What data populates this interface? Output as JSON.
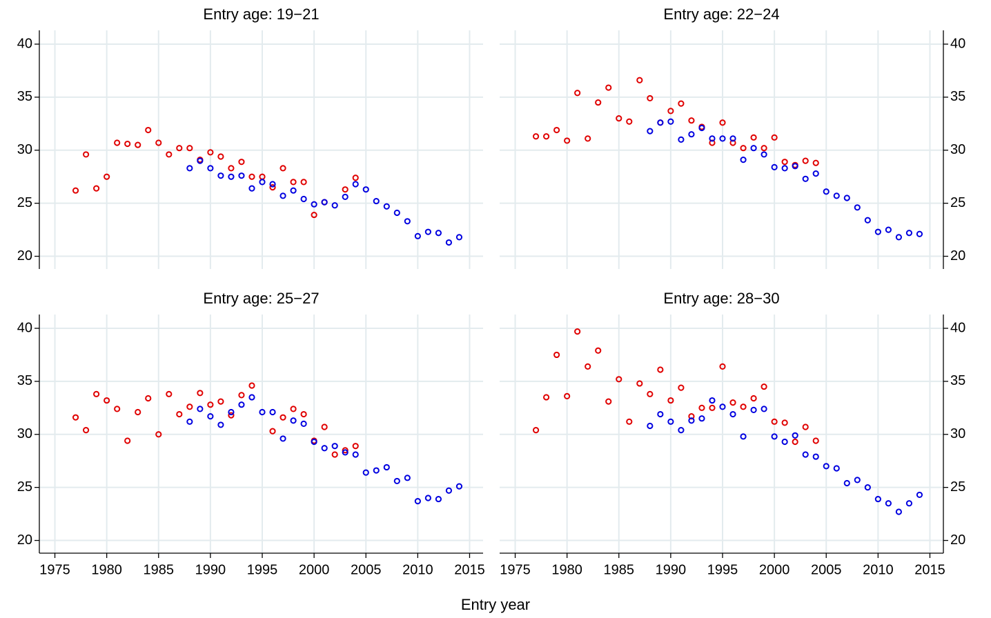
{
  "xlabel": "Entry year",
  "chart_data": [
    {
      "type": "scatter",
      "title": "Entry age: 19−21",
      "xlim": [
        1973.5,
        2016.3
      ],
      "ylim": [
        18.8,
        41.3
      ],
      "xticks": [
        1975,
        1980,
        1985,
        1990,
        1995,
        2000,
        2005,
        2010,
        2015
      ],
      "yticks": [
        20,
        25,
        30,
        35,
        40
      ],
      "grid": true,
      "series": [
        {
          "color": "#e00000",
          "x": [
            1977,
            1978,
            1979,
            1980,
            1981,
            1982,
            1983,
            1984,
            1985,
            1986,
            1987,
            1988,
            1989,
            1990,
            1991,
            1992,
            1993,
            1994,
            1995,
            1996,
            1997,
            1998,
            1999,
            2000,
            2001,
            2003,
            2004
          ],
          "values": [
            26.2,
            29.6,
            26.4,
            27.5,
            30.7,
            30.6,
            30.5,
            31.9,
            30.7,
            29.6,
            30.2,
            30.2,
            29.1,
            29.8,
            29.4,
            28.3,
            28.9,
            27.5,
            27.5,
            26.5,
            28.3,
            27.0,
            27.0,
            23.9,
            25.1,
            26.3,
            27.4
          ]
        },
        {
          "color": "#0000e0",
          "x": [
            1988,
            1989,
            1990,
            1991,
            1992,
            1993,
            1994,
            1995,
            1996,
            1997,
            1998,
            1999,
            2000,
            2001,
            2002,
            2003,
            2004,
            2005,
            2006,
            2007,
            2008,
            2009,
            2010,
            2011,
            2012,
            2013,
            2014
          ],
          "values": [
            28.3,
            29.0,
            28.3,
            27.6,
            27.5,
            27.6,
            26.4,
            27.0,
            26.8,
            25.7,
            26.2,
            25.4,
            24.9,
            25.1,
            24.8,
            25.6,
            26.8,
            26.3,
            25.2,
            24.7,
            24.1,
            23.3,
            21.9,
            22.3,
            22.2,
            21.3,
            21.8
          ]
        }
      ]
    },
    {
      "type": "scatter",
      "title": "Entry age: 22−24",
      "xlim": [
        1973.5,
        2016.3
      ],
      "ylim": [
        18.8,
        41.3
      ],
      "xticks": [
        1975,
        1980,
        1985,
        1990,
        1995,
        2000,
        2005,
        2010,
        2015
      ],
      "yticks": [
        20,
        25,
        30,
        35,
        40
      ],
      "grid": true,
      "series": [
        {
          "color": "#e00000",
          "x": [
            1977,
            1978,
            1979,
            1980,
            1981,
            1982,
            1983,
            1984,
            1985,
            1986,
            1987,
            1988,
            1989,
            1990,
            1991,
            1992,
            1993,
            1994,
            1995,
            1996,
            1997,
            1998,
            1999,
            2000,
            2001,
            2002,
            2003,
            2004
          ],
          "values": [
            31.3,
            31.3,
            31.9,
            30.9,
            35.4,
            31.1,
            34.5,
            35.9,
            33.0,
            32.7,
            36.6,
            34.9,
            32.6,
            33.7,
            34.4,
            32.8,
            32.2,
            30.7,
            32.6,
            30.7,
            30.2,
            31.2,
            30.2,
            31.2,
            28.9,
            28.6,
            29.0,
            28.8
          ]
        },
        {
          "color": "#0000e0",
          "x": [
            1988,
            1989,
            1990,
            1991,
            1992,
            1993,
            1994,
            1995,
            1996,
            1997,
            1998,
            1999,
            2000,
            2001,
            2002,
            2003,
            2004,
            2005,
            2006,
            2007,
            2008,
            2009,
            2010,
            2011,
            2012,
            2013,
            2014
          ],
          "values": [
            31.8,
            32.6,
            32.7,
            31.0,
            31.5,
            32.1,
            31.1,
            31.1,
            31.1,
            29.1,
            30.2,
            29.6,
            28.4,
            28.3,
            28.5,
            27.3,
            27.8,
            26.1,
            25.7,
            25.5,
            24.6,
            23.4,
            22.3,
            22.5,
            21.8,
            22.2,
            22.1
          ]
        }
      ]
    },
    {
      "type": "scatter",
      "title": "Entry age: 25−27",
      "xlim": [
        1973.5,
        2016.3
      ],
      "ylim": [
        18.8,
        41.3
      ],
      "xticks": [
        1975,
        1980,
        1985,
        1990,
        1995,
        2000,
        2005,
        2010,
        2015
      ],
      "yticks": [
        20,
        25,
        30,
        35,
        40
      ],
      "grid": true,
      "series": [
        {
          "color": "#e00000",
          "x": [
            1977,
            1978,
            1979,
            1980,
            1981,
            1982,
            1983,
            1984,
            1985,
            1986,
            1987,
            1988,
            1989,
            1990,
            1991,
            1992,
            1993,
            1994,
            1996,
            1997,
            1998,
            1999,
            2000,
            2001,
            2002,
            2003,
            2004
          ],
          "values": [
            31.6,
            30.4,
            33.8,
            33.2,
            32.4,
            29.4,
            32.1,
            33.4,
            30.0,
            33.8,
            31.9,
            32.6,
            33.9,
            32.8,
            33.1,
            31.8,
            33.7,
            34.6,
            30.3,
            31.6,
            32.4,
            31.9,
            29.4,
            30.7,
            28.1,
            28.5,
            28.9
          ]
        },
        {
          "color": "#0000e0",
          "x": [
            1988,
            1989,
            1990,
            1991,
            1992,
            1993,
            1994,
            1995,
            1996,
            1997,
            1998,
            1999,
            2000,
            2001,
            2002,
            2003,
            2004,
            2005,
            2006,
            2007,
            2008,
            2009,
            2010,
            2011,
            2012,
            2013,
            2014
          ],
          "values": [
            31.2,
            32.4,
            31.7,
            30.9,
            32.1,
            32.8,
            33.5,
            32.1,
            32.1,
            29.6,
            31.3,
            31.0,
            29.3,
            28.7,
            28.9,
            28.3,
            28.1,
            26.4,
            26.6,
            26.9,
            25.6,
            25.9,
            23.7,
            24.0,
            23.9,
            24.7,
            25.1
          ]
        }
      ]
    },
    {
      "type": "scatter",
      "title": "Entry age: 28−30",
      "xlim": [
        1973.5,
        2016.3
      ],
      "ylim": [
        18.8,
        41.3
      ],
      "xticks": [
        1975,
        1980,
        1985,
        1990,
        1995,
        2000,
        2005,
        2010,
        2015
      ],
      "yticks": [
        20,
        25,
        30,
        35,
        40
      ],
      "grid": true,
      "series": [
        {
          "color": "#e00000",
          "x": [
            1977,
            1978,
            1979,
            1980,
            1981,
            1982,
            1983,
            1984,
            1985,
            1986,
            1987,
            1988,
            1989,
            1990,
            1991,
            1992,
            1993,
            1994,
            1995,
            1996,
            1997,
            1998,
            1999,
            2000,
            2001,
            2002,
            2003,
            2004
          ],
          "values": [
            30.4,
            33.5,
            37.5,
            33.6,
            39.7,
            36.4,
            37.9,
            33.1,
            35.2,
            31.2,
            34.8,
            33.8,
            36.1,
            33.2,
            34.4,
            31.7,
            32.5,
            32.5,
            36.4,
            33.0,
            32.6,
            33.4,
            34.5,
            31.2,
            31.1,
            29.3,
            30.7,
            29.4
          ]
        },
        {
          "color": "#0000e0",
          "x": [
            1988,
            1989,
            1990,
            1991,
            1992,
            1993,
            1994,
            1995,
            1996,
            1997,
            1998,
            1999,
            2000,
            2001,
            2002,
            2003,
            2004,
            2005,
            2006,
            2007,
            2008,
            2009,
            2010,
            2011,
            2012,
            2013,
            2014
          ],
          "values": [
            30.8,
            31.9,
            31.2,
            30.4,
            31.3,
            31.5,
            33.2,
            32.6,
            31.9,
            29.8,
            32.3,
            32.4,
            29.8,
            29.3,
            29.9,
            28.1,
            27.9,
            27.0,
            26.8,
            25.4,
            25.7,
            25.0,
            23.9,
            23.5,
            22.7,
            23.5,
            24.3
          ]
        }
      ]
    }
  ]
}
